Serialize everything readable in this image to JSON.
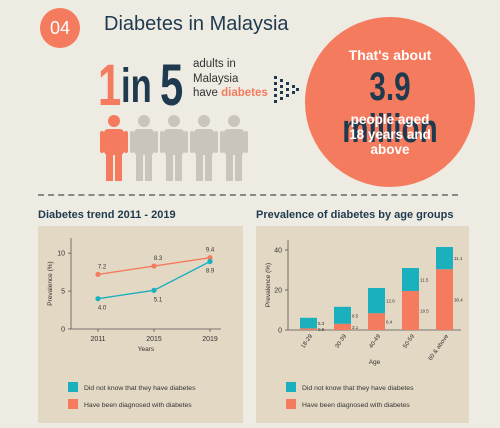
{
  "header": {
    "number": "04",
    "title": "Diabetes in Malaysia"
  },
  "ratio": {
    "one": "1",
    "in": "in",
    "five": "5",
    "line1": "adults in",
    "line2": "Malaysia",
    "line3_prefix": "have",
    "line3_highlight": "diabetes"
  },
  "people": {
    "highlighted": 1,
    "total": 5
  },
  "callout": {
    "intro": "That's about",
    "value": "3.9 million",
    "line1": "people aged",
    "line2": "18 years and",
    "line3": "above"
  },
  "colors": {
    "orange": "#f47b5e",
    "teal": "#1ab0bd",
    "navy": "#1f3a4e",
    "grey": "#c9c5bd",
    "panel": "#e3d8c3"
  },
  "chart_data": [
    {
      "type": "line",
      "title": "Diabetes trend 2011 - 2019",
      "xlabel": "Years",
      "ylabel": "Prevalence (%)",
      "x": [
        "2011",
        "2015",
        "2019"
      ],
      "ylim": [
        0,
        12
      ],
      "yticks": [
        "0",
        "5",
        "10"
      ],
      "series": [
        {
          "name": "Have been diagnosed with diabetes",
          "color": "#f47b5e",
          "values": [
            7.2,
            8.3,
            9.4
          ],
          "labels": [
            "7.2",
            "8.3",
            "9.4"
          ]
        },
        {
          "name": "Did not know that they have diabetes",
          "color": "#1ab0bd",
          "values": [
            4.0,
            5.1,
            8.9
          ],
          "labels": [
            "4.0",
            "5.1",
            "8.9"
          ]
        }
      ],
      "legend": "bottom"
    },
    {
      "type": "bar",
      "title": "Prevalence of diabetes by age groups",
      "xlabel": "Age",
      "ylabel": "Prevalence (%)",
      "categories": [
        "18-29",
        "30-39",
        "40-49",
        "50-59",
        "60 & above"
      ],
      "ylim": [
        0,
        45
      ],
      "yticks": [
        "0",
        "20",
        "40"
      ],
      "series": [
        {
          "name": "Have been diagnosed with diabetes",
          "color": "#f47b5e",
          "values": [
            0.8,
            3.1,
            8.4,
            19.5,
            30.4
          ],
          "labels": [
            "0.8",
            "3.1",
            "8.4",
            "19.5",
            "30.4"
          ]
        },
        {
          "name": "Did not know that they have diabetes",
          "color": "#1ab0bd",
          "values": [
            5.3,
            8.5,
            12.6,
            11.5,
            11.1
          ],
          "labels": [
            "5.3",
            "8.5",
            "12.6",
            "11.5",
            "11.1"
          ]
        }
      ],
      "legend": "bottom"
    }
  ]
}
